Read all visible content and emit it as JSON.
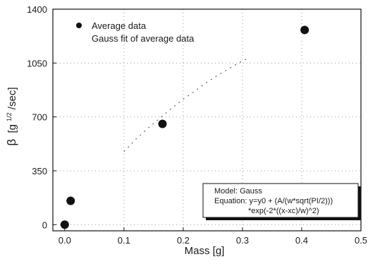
{
  "chart_data": {
    "type": "scatter",
    "xlabel": "Mass [g]",
    "ylabel": {
      "symbol": "β",
      "pre": "[g",
      "sup": "1/2",
      "post": "/sec]"
    },
    "xlim": [
      -0.02,
      0.5
    ],
    "ylim": [
      -40,
      1400
    ],
    "xticks": [
      "0.0",
      "0.1",
      "0.2",
      "0.3",
      "0.4",
      "0.5"
    ],
    "xtick_values": [
      0.0,
      0.1,
      0.2,
      0.3,
      0.4,
      0.5
    ],
    "yticks": [
      "0",
      "350",
      "700",
      "1050",
      "1400"
    ],
    "ytick_values": [
      0,
      350,
      700,
      1050,
      1400
    ],
    "grid": "dotted",
    "legend_position": "top-left",
    "series": [
      {
        "name": "Average data",
        "kind": "points",
        "x": [
          0.0,
          0.01,
          0.165,
          0.405
        ],
        "y": [
          0,
          155,
          655,
          1265
        ]
      },
      {
        "name": "Gauss fit of average data",
        "kind": "fit",
        "x": [
          0.1,
          0.12,
          0.14,
          0.16,
          0.18,
          0.2,
          0.22,
          0.24,
          0.26,
          0.28,
          0.3,
          0.31
        ],
        "y": [
          475,
          555,
          625,
          690,
          755,
          815,
          870,
          925,
          975,
          1020,
          1065,
          1080
        ]
      }
    ],
    "annotation": {
      "lines": [
        "Model: Gauss",
        "Equation: y=y0 + (A/(w*sqrt(PI/2)))",
        "*exp(-2*((x-xc)/w)^2)"
      ]
    }
  }
}
